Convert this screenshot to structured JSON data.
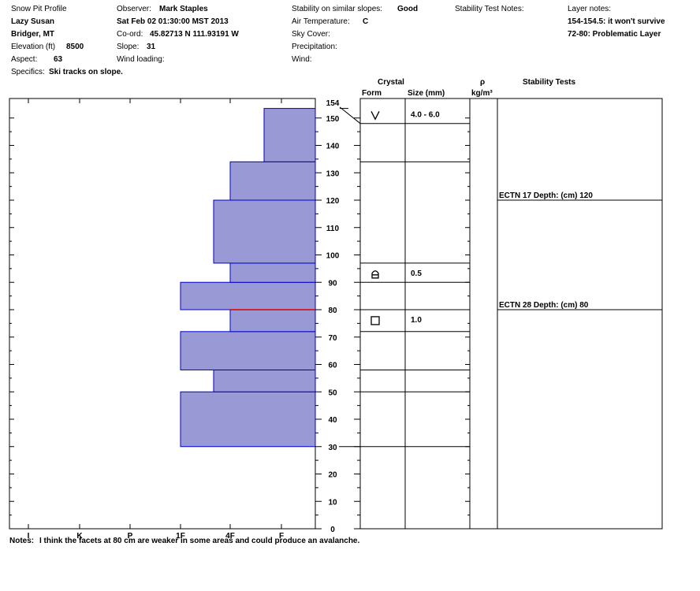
{
  "header": {
    "title": "Snow Pit Profile",
    "location": "Lazy Susan",
    "region": "Bridger, MT",
    "elevation_label": "Elevation (ft)",
    "elevation": "8500",
    "aspect_label": "Aspect:",
    "aspect": "63",
    "specifics_label": "Specifics:",
    "specifics": "Ski tracks on slope.",
    "observer_label": "Observer:",
    "observer": "Mark Staples",
    "datetime": "Sat Feb 02 01:30:00 MST 2013",
    "coord_label": "Co-ord:",
    "coord": "45.82713 N 111.93191 W",
    "slope_label": "Slope:",
    "slope": "31",
    "wind_loading_label": "Wind loading:",
    "stability_label": "Stability on similar slopes:",
    "stability": "Good",
    "air_temp_label": "Air Temperature:",
    "air_temp": "C",
    "sky_label": "Sky Cover:",
    "precip_label": "Precipitation:",
    "wind_label": "Wind:",
    "stability_notes_label": "Stability Test Notes:",
    "layer_notes_label": "Layer notes:",
    "layer_notes": [
      "154-154.5: it won't survive",
      "72-80: Problematic Layer"
    ]
  },
  "table_headers": {
    "crystal": "Crystal",
    "form": "Form",
    "size": "Size (mm)",
    "rho": "ρ",
    "density_unit": "kg/m³",
    "stability_tests": "Stability Tests"
  },
  "notes": {
    "label": "Notes:",
    "text": "I think the facets at 80 cm are weaker in some areas and could produce an avalanche."
  },
  "chart_data": {
    "type": "bar",
    "orientation": "horizontal",
    "y_axis_unit": "cm",
    "ylim": [
      0,
      155
    ],
    "y_ticks": [
      0,
      10,
      20,
      30,
      40,
      50,
      60,
      70,
      80,
      90,
      100,
      110,
      120,
      130,
      140,
      150
    ],
    "top_label": "154",
    "x_categories": [
      "I",
      "K",
      "P",
      "1F",
      "4F",
      "F"
    ],
    "hardness_layers": [
      {
        "bottom": 30,
        "top": 50,
        "hardness": "1F"
      },
      {
        "bottom": 50,
        "top": 58,
        "hardness": "4F+"
      },
      {
        "bottom": 58,
        "top": 72,
        "hardness": "1F"
      },
      {
        "bottom": 72,
        "top": 80,
        "hardness": "4F"
      },
      {
        "bottom": 80,
        "top": 90,
        "hardness": "1F"
      },
      {
        "bottom": 90,
        "top": 97,
        "hardness": "4F"
      },
      {
        "bottom": 97,
        "top": 120,
        "hardness": "4F+"
      },
      {
        "bottom": 120,
        "top": 134,
        "hardness": "4F"
      },
      {
        "bottom": 134,
        "top": 153.5,
        "hardness": "F+"
      }
    ],
    "weak_layer_cm": 80,
    "layer_boundaries_cm": [
      30,
      50,
      58,
      72,
      80,
      90,
      97,
      134,
      148
    ],
    "stability_boundaries_cm": [
      80,
      120
    ],
    "crystal_layers": [
      {
        "depth": 151,
        "form": "surface-hoar",
        "size": "4.0 - 6.0"
      },
      {
        "depth": 93,
        "form": "depth-hoar",
        "size": "0.5"
      },
      {
        "depth": 76,
        "form": "faceted",
        "size": "1.0"
      }
    ],
    "stability_tests": [
      {
        "depth": 120,
        "label": "ECTN 17  Depth: (cm) 120"
      },
      {
        "depth": 80,
        "label": "ECTN 28  Depth: (cm) 80"
      }
    ]
  }
}
